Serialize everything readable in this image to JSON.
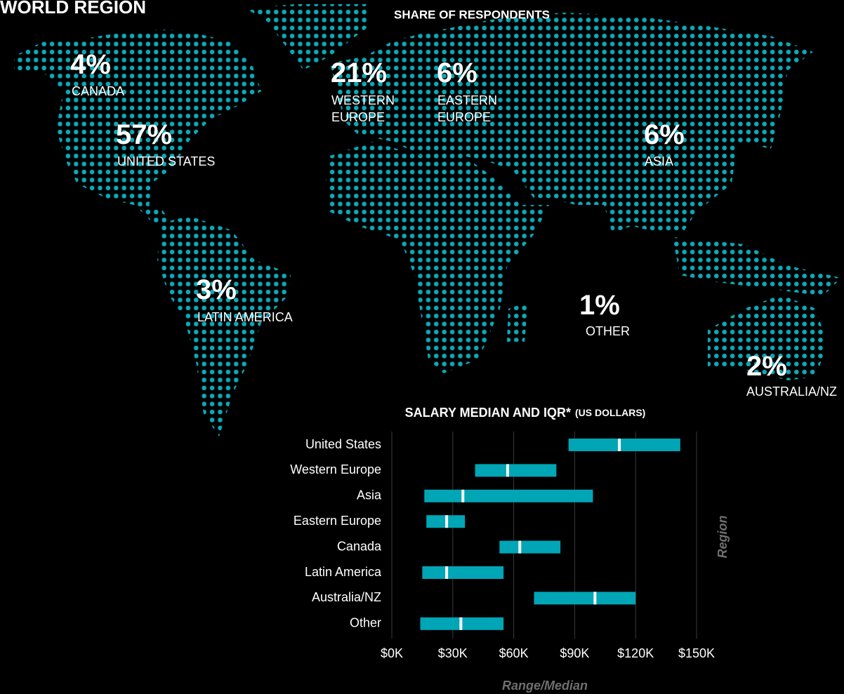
{
  "title": "WORLD REGION",
  "chart_data": [
    {
      "type": "map",
      "title": "SHARE OF RESPONDENTS",
      "categories": [
        "CANADA",
        "UNITED STATES",
        "WESTERN EUROPE",
        "EASTERN EUROPE",
        "ASIA",
        "LATIN AMERICA",
        "OTHER",
        "AUSTRALIA/NZ"
      ],
      "values": [
        4,
        57,
        21,
        6,
        6,
        3,
        1,
        2
      ],
      "value_labels": [
        "4%",
        "57%",
        "21%",
        "6%",
        "6%",
        "3%",
        "1%",
        "2%"
      ],
      "color": "#0aa9b8"
    },
    {
      "type": "range",
      "title": "SALARY MEDIAN AND IQR*",
      "subtitle": "(US DOLLARS)",
      "x_label": "Range/Median",
      "y_label": "Region",
      "categories": [
        "United States",
        "Western Europe",
        "Asia",
        "Eastern Europe",
        "Canada",
        "Latin America",
        "Australia/NZ",
        "Other"
      ],
      "low": [
        87,
        41,
        16,
        17,
        53,
        15,
        70,
        14
      ],
      "high": [
        142,
        81,
        99,
        36,
        83,
        55,
        120,
        55
      ],
      "median": [
        112,
        57,
        35,
        27,
        63,
        27,
        100,
        34
      ],
      "color": "#00a6b6",
      "median_color": "#ffffff",
      "xlim": [
        0,
        150
      ],
      "xticks": [
        {
          "value": 0,
          "label": "$0K"
        },
        {
          "value": 30,
          "label": "$30K"
        },
        {
          "value": 60,
          "label": "$60K"
        },
        {
          "value": 90,
          "label": "$90K"
        },
        {
          "value": 120,
          "label": "$120K"
        },
        {
          "value": 150,
          "label": "$150K"
        }
      ],
      "grid": true
    }
  ]
}
